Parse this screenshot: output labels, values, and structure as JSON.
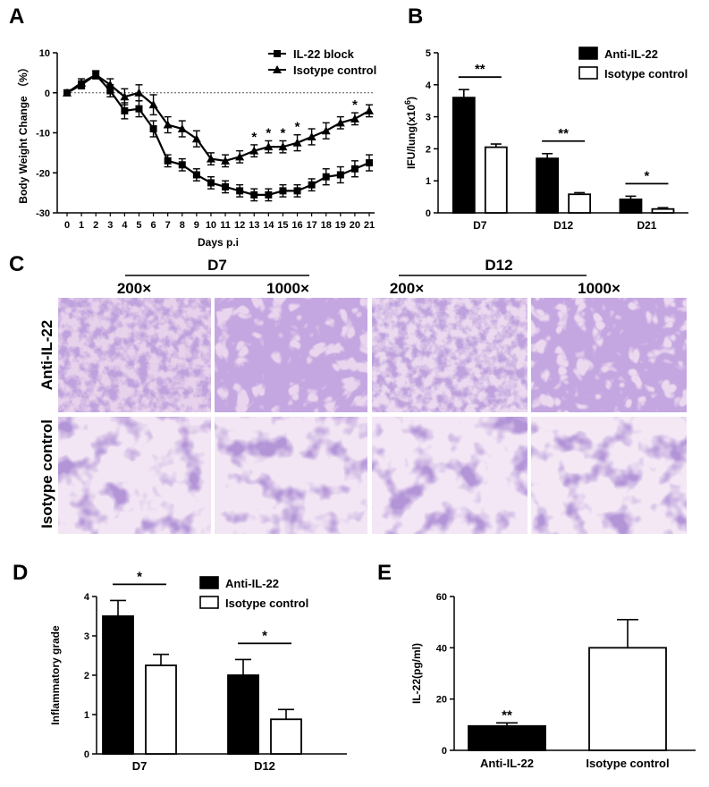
{
  "panels": {
    "A": {
      "letter": "A"
    },
    "B": {
      "letter": "B"
    },
    "C": {
      "letter": "C"
    },
    "D": {
      "letter": "D"
    },
    "E": {
      "letter": "E"
    }
  },
  "chart_data": [
    {
      "panel": "A",
      "type": "line",
      "xlabel": "Days p.i",
      "ylabel": "Body Weight Change （%）",
      "x": [
        0,
        1,
        2,
        3,
        4,
        5,
        6,
        7,
        8,
        9,
        10,
        11,
        12,
        13,
        14,
        15,
        16,
        17,
        18,
        19,
        20,
        21
      ],
      "ylim": [
        -30,
        10
      ],
      "yticks": [
        10,
        0,
        -10,
        -20,
        -30
      ],
      "series": [
        {
          "name": "IL-22 block",
          "marker": "square",
          "values": [
            0,
            2,
            4.5,
            0.5,
            -4.5,
            -4,
            -9,
            -17,
            -18,
            -20.5,
            -22.5,
            -23.5,
            -24.5,
            -25.5,
            -25.5,
            -24.5,
            -24.5,
            -23,
            -21,
            -20.5,
            -19,
            -17.5
          ],
          "errors": [
            0.5,
            1,
            1,
            1.5,
            2,
            2,
            2,
            1.5,
            1.5,
            1.5,
            1.5,
            1.5,
            1.5,
            1.5,
            1.5,
            1.5,
            1.5,
            1.5,
            2,
            2,
            2,
            2
          ]
        },
        {
          "name": "Isotype control",
          "marker": "triangle",
          "values": [
            0,
            2.5,
            4.5,
            2,
            -1,
            0,
            -3,
            -8,
            -9,
            -11.5,
            -16.5,
            -17,
            -16,
            -14.5,
            -13.5,
            -13.5,
            -12.5,
            -11,
            -9.5,
            -7.5,
            -6.5,
            -4.5
          ],
          "errors": [
            0.5,
            1,
            1,
            1.5,
            2,
            2,
            2.5,
            2,
            2,
            2,
            1.5,
            1.5,
            1.5,
            1.5,
            1.5,
            1.5,
            2,
            2,
            2,
            1.5,
            1.5,
            1.5
          ]
        }
      ],
      "annotations": [
        {
          "x": 13,
          "text": "*"
        },
        {
          "x": 14,
          "text": "*"
        },
        {
          "x": 15,
          "text": "*"
        },
        {
          "x": 16,
          "text": "*"
        },
        {
          "x": 20,
          "text": "*"
        }
      ],
      "reference_line": 0
    },
    {
      "panel": "B",
      "type": "bar",
      "ylabel": "IFU/lung(x10",
      "ylabel_exp": "6",
      "ylabel_close": ")",
      "categories": [
        "D7",
        "D12",
        "D21"
      ],
      "ylim": [
        0,
        5
      ],
      "yticks": [
        0,
        1,
        2,
        3,
        4,
        5
      ],
      "series": [
        {
          "name": "Anti-IL-22",
          "fill": "#000000",
          "values": [
            3.6,
            1.7,
            0.42
          ],
          "errors": [
            0.25,
            0.15,
            0.1
          ]
        },
        {
          "name": "Isotype control",
          "fill": "#ffffff",
          "values": [
            2.05,
            0.58,
            0.12
          ],
          "errors": [
            0.1,
            0.05,
            0.04
          ]
        }
      ],
      "significance": [
        "**",
        "**",
        "*"
      ]
    },
    {
      "panel": "D",
      "type": "bar",
      "ylabel": "Inflammatory grade",
      "categories": [
        "D7",
        "D12"
      ],
      "ylim": [
        0,
        4
      ],
      "yticks": [
        0,
        1,
        2,
        3,
        4
      ],
      "series": [
        {
          "name": "Anti-IL-22",
          "fill": "#000000",
          "values": [
            3.5,
            2.0
          ],
          "errors": [
            0.4,
            0.4
          ]
        },
        {
          "name": "Isotype control",
          "fill": "#ffffff",
          "values": [
            2.25,
            0.88
          ],
          "errors": [
            0.28,
            0.25
          ]
        }
      ],
      "significance": [
        "*",
        "*"
      ]
    },
    {
      "panel": "E",
      "type": "bar",
      "ylabel": "IL-22(pg/ml)",
      "categories": [
        "Anti-IL-22",
        "Isotype control"
      ],
      "ylim": [
        0,
        60
      ],
      "yticks": [
        0,
        20,
        40,
        60
      ],
      "values": [
        9.5,
        40
      ],
      "errors": [
        1.2,
        11
      ],
      "fills": [
        "#000000",
        "#ffffff"
      ],
      "significance": [
        "**",
        ""
      ]
    }
  ],
  "histology": {
    "groups": [
      {
        "label": "D7",
        "magnifications": [
          "200×",
          "1000×"
        ]
      },
      {
        "label": "D12",
        "magnifications": [
          "200×",
          "1000×"
        ]
      }
    ],
    "rows": [
      "Anti-IL-22",
      "Isotype control"
    ]
  }
}
